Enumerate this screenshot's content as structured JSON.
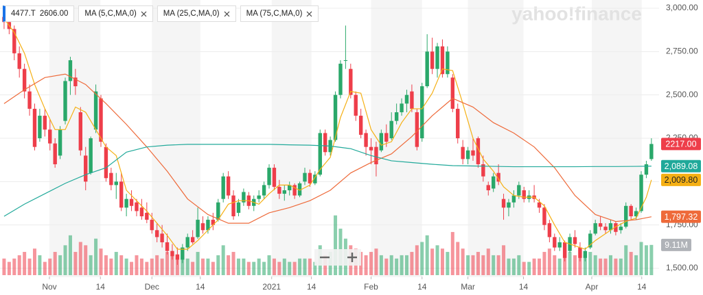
{
  "chart_data": {
    "type": "candlestick",
    "symbol": "4477.T",
    "quote": "2606.00",
    "watermark": "yahoo!finance",
    "up_color": "#2aa86a",
    "down_color": "#ee3e4a",
    "grid": true,
    "ylim": [
      1500,
      3000
    ],
    "yticks": [
      {
        "value": 1500,
        "label": "1,500.00"
      },
      {
        "value": 1750,
        "label": "1,750.00"
      },
      {
        "value": 2000,
        "label": "2,000.00"
      },
      {
        "value": 2250,
        "label": "2,250.00"
      },
      {
        "value": 2500,
        "label": "2,500.00"
      },
      {
        "value": 2750,
        "label": "2,750.00"
      },
      {
        "value": 3000,
        "label": "3,000.00"
      }
    ],
    "xlim": [
      -0.8,
      128.5
    ],
    "xticks": [
      {
        "value": 8.9,
        "label": "Nov"
      },
      {
        "value": 18.9,
        "label": "14"
      },
      {
        "value": 29,
        "label": "Dec"
      },
      {
        "value": 38.5,
        "label": "14"
      },
      {
        "value": 52.5,
        "label": "2021"
      },
      {
        "value": 60.3,
        "label": "14"
      },
      {
        "value": 72,
        "label": "Feb"
      },
      {
        "value": 82,
        "label": "14"
      },
      {
        "value": 91,
        "label": "Mar"
      },
      {
        "value": 101.9,
        "label": "14"
      },
      {
        "value": 115.3,
        "label": "Apr"
      },
      {
        "value": 125.1,
        "label": "14"
      }
    ],
    "close_label": "2217.00",
    "candles": [
      [
        2950,
        3000,
        2880,
        2920
      ],
      [
        2920,
        2960,
        2850,
        2880
      ],
      [
        2880,
        2900,
        2700,
        2740
      ],
      [
        2740,
        2780,
        2600,
        2650
      ],
      [
        2650,
        2680,
        2480,
        2520
      ],
      [
        2520,
        2560,
        2380,
        2420
      ],
      [
        2420,
        2450,
        2180,
        2200
      ],
      [
        2250,
        2420,
        2230,
        2380
      ],
      [
        2380,
        2420,
        2260,
        2300
      ],
      [
        2300,
        2360,
        2180,
        2220
      ],
      [
        2220,
        2250,
        2080,
        2100
      ],
      [
        2150,
        2320,
        2130,
        2300
      ],
      [
        2350,
        2600,
        2330,
        2580
      ],
      [
        2580,
        2720,
        2500,
        2700
      ],
      [
        2600,
        2650,
        2500,
        2550
      ],
      [
        2400,
        2430,
        2150,
        2180
      ],
      [
        2150,
        2200,
        1950,
        2000
      ],
      [
        2050,
        2260,
        2040,
        2250
      ],
      [
        2300,
        2560,
        2280,
        2520
      ],
      [
        2480,
        2500,
        2200,
        2230
      ],
      [
        2200,
        2220,
        2000,
        2020
      ],
      [
        2050,
        2080,
        1950,
        1980
      ],
      [
        1980,
        2050,
        1900,
        2000
      ],
      [
        2000,
        2050,
        1830,
        1850
      ],
      [
        1850,
        1930,
        1800,
        1900
      ],
      [
        1900,
        1950,
        1830,
        1860
      ],
      [
        1880,
        1900,
        1800,
        1830
      ],
      [
        1850,
        1900,
        1780,
        1800
      ],
      [
        1820,
        1880,
        1760,
        1780
      ],
      [
        1780,
        1820,
        1700,
        1720
      ],
      [
        1720,
        1760,
        1650,
        1680
      ],
      [
        1700,
        1750,
        1620,
        1650
      ],
      [
        1650,
        1700,
        1580,
        1600
      ],
      [
        1600,
        1640,
        1550,
        1570
      ],
      [
        1580,
        1620,
        1520,
        1550
      ],
      [
        1550,
        1640,
        1530,
        1620
      ],
      [
        1620,
        1700,
        1600,
        1680
      ],
      [
        1680,
        1720,
        1640,
        1650
      ],
      [
        1680,
        1850,
        1670,
        1780
      ],
      [
        1760,
        1800,
        1700,
        1720
      ],
      [
        1720,
        1800,
        1700,
        1780
      ],
      [
        1780,
        1820,
        1720,
        1750
      ],
      [
        1780,
        1900,
        1770,
        1880
      ],
      [
        1900,
        2050,
        1880,
        2030
      ],
      [
        2030,
        2060,
        1900,
        1920
      ],
      [
        1920,
        1950,
        1780,
        1800
      ],
      [
        1820,
        1900,
        1800,
        1880
      ],
      [
        1880,
        1960,
        1860,
        1940
      ],
      [
        1920,
        1940,
        1840,
        1860
      ],
      [
        1860,
        1920,
        1830,
        1900
      ],
      [
        1900,
        1950,
        1880,
        1920
      ],
      [
        1920,
        2000,
        1900,
        1980
      ],
      [
        1980,
        2100,
        1960,
        2080
      ],
      [
        2080,
        2100,
        1950,
        1970
      ],
      [
        1970,
        2010,
        1900,
        1930
      ],
      [
        1930,
        1980,
        1890,
        1950
      ],
      [
        1950,
        2000,
        1920,
        1980
      ],
      [
        1980,
        1990,
        1900,
        1920
      ],
      [
        1920,
        2000,
        1910,
        1990
      ],
      [
        2000,
        2080,
        1980,
        2050
      ],
      [
        2050,
        2070,
        1970,
        1990
      ],
      [
        1990,
        2060,
        1980,
        2040
      ],
      [
        2040,
        2300,
        2030,
        2280
      ],
      [
        2280,
        2300,
        2150,
        2170
      ],
      [
        2170,
        2260,
        2150,
        2240
      ],
      [
        2240,
        2520,
        2230,
        2500
      ],
      [
        2500,
        2700,
        2480,
        2680
      ],
      [
        2700,
        2900,
        2650,
        2700
      ],
      [
        2650,
        2680,
        2480,
        2500
      ],
      [
        2500,
        2520,
        2350,
        2380
      ],
      [
        2380,
        2420,
        2250,
        2270
      ],
      [
        2280,
        2300,
        2150,
        2200
      ],
      [
        2200,
        2250,
        2100,
        2180
      ],
      [
        2200,
        2230,
        2030,
        2100
      ],
      [
        2180,
        2300,
        2170,
        2280
      ],
      [
        2280,
        2330,
        2200,
        2230
      ],
      [
        2250,
        2400,
        2240,
        2350
      ],
      [
        2350,
        2450,
        2330,
        2400
      ],
      [
        2400,
        2480,
        2380,
        2450
      ],
      [
        2450,
        2530,
        2400,
        2500
      ],
      [
        2520,
        2560,
        2400,
        2420
      ],
      [
        2400,
        2420,
        2180,
        2200
      ],
      [
        2250,
        2570,
        2230,
        2550
      ],
      [
        2550,
        2850,
        2540,
        2750
      ],
      [
        2750,
        2830,
        2620,
        2650
      ],
      [
        2650,
        2800,
        2600,
        2780
      ],
      [
        2780,
        2820,
        2600,
        2620
      ],
      [
        2620,
        2780,
        2600,
        2750
      ],
      [
        2600,
        2620,
        2400,
        2420
      ],
      [
        2420,
        2450,
        2220,
        2250
      ],
      [
        2200,
        2240,
        2100,
        2130
      ],
      [
        2130,
        2200,
        2100,
        2180
      ],
      [
        2180,
        2250,
        2120,
        2150
      ],
      [
        2250,
        2260,
        2080,
        2100
      ],
      [
        2100,
        2150,
        2000,
        2030
      ],
      [
        1980,
        2000,
        1920,
        1950
      ],
      [
        1960,
        2050,
        1940,
        2030
      ],
      [
        2050,
        2100,
        1980,
        2000
      ],
      [
        1900,
        1930,
        1780,
        1850
      ],
      [
        1850,
        1900,
        1800,
        1880
      ],
      [
        1880,
        1950,
        1850,
        1920
      ],
      [
        1920,
        2000,
        1900,
        1980
      ],
      [
        1950,
        1970,
        1880,
        1900
      ],
      [
        1900,
        1950,
        1880,
        1920
      ],
      [
        1920,
        1980,
        1880,
        1900
      ],
      [
        1880,
        1900,
        1820,
        1850
      ],
      [
        1850,
        1870,
        1720,
        1750
      ],
      [
        1760,
        1780,
        1650,
        1680
      ],
      [
        1680,
        1700,
        1600,
        1620
      ],
      [
        1620,
        1680,
        1600,
        1650
      ],
      [
        1650,
        1660,
        1540,
        1560
      ],
      [
        1600,
        1700,
        1590,
        1680
      ],
      [
        1680,
        1720,
        1620,
        1640
      ],
      [
        1620,
        1650,
        1540,
        1560
      ],
      [
        1560,
        1620,
        1540,
        1600
      ],
      [
        1620,
        1720,
        1610,
        1700
      ],
      [
        1700,
        1780,
        1690,
        1760
      ],
      [
        1760,
        1800,
        1720,
        1740
      ],
      [
        1740,
        1760,
        1700,
        1720
      ],
      [
        1720,
        1780,
        1700,
        1760
      ],
      [
        1760,
        1770,
        1690,
        1710
      ],
      [
        1720,
        1760,
        1700,
        1740
      ],
      [
        1740,
        1880,
        1730,
        1860
      ],
      [
        1860,
        1870,
        1780,
        1800
      ],
      [
        1800,
        1850,
        1780,
        1830
      ],
      [
        1830,
        2060,
        1820,
        2040
      ],
      [
        2040,
        2120,
        2020,
        2100
      ],
      [
        2130,
        2250,
        2120,
        2217
      ]
    ],
    "volume_lim": [
      0,
      20
    ],
    "volumes": [
      5,
      4,
      5,
      6,
      7,
      5,
      8,
      6,
      4,
      5,
      7,
      6,
      9,
      12,
      7,
      10,
      9,
      6,
      11,
      8,
      6,
      5,
      7,
      6,
      5,
      4,
      6,
      5,
      4,
      5,
      6,
      5,
      7,
      6,
      5,
      6,
      5,
      4,
      7,
      5,
      5,
      4,
      6,
      9,
      6,
      7,
      5,
      5,
      4,
      4,
      5,
      4,
      6,
      5,
      4,
      5,
      4,
      4,
      5,
      5,
      5,
      4,
      9,
      6,
      7,
      18,
      14,
      11,
      9,
      8,
      7,
      6,
      7,
      8,
      6,
      5,
      6,
      5,
      6,
      6,
      7,
      9,
      10,
      12,
      8,
      9,
      8,
      7,
      13,
      10,
      8,
      6,
      6,
      7,
      6,
      8,
      6,
      6,
      9,
      5,
      5,
      6,
      4,
      4,
      5,
      5,
      7,
      8,
      6,
      5,
      8,
      7,
      6,
      8,
      6,
      7,
      6,
      5,
      5,
      6,
      5,
      5,
      9,
      7,
      6,
      10,
      9,
      9.11
    ],
    "volume_label": "9.11M",
    "series": [
      {
        "name": "MA (5,C,MA,0)",
        "color": "#f5b014",
        "label_text_color": "#222222",
        "last_label": "2,009.80",
        "x": [
          0,
          2,
          4,
          6,
          8,
          10,
          12,
          14,
          16,
          18,
          20,
          22,
          24,
          26,
          28,
          30,
          32,
          34,
          36,
          38,
          40,
          42,
          44,
          46,
          48,
          50,
          52,
          54,
          56,
          58,
          60,
          62,
          64,
          66,
          68,
          70,
          72,
          74,
          76,
          78,
          80,
          82,
          84,
          86,
          88,
          90,
          92,
          94,
          96,
          98,
          100,
          102,
          104,
          106,
          108,
          110,
          112,
          114,
          116,
          118,
          120,
          122,
          124,
          126,
          127
        ],
        "values": [
          2940,
          2860,
          2740,
          2560,
          2420,
          2300,
          2300,
          2430,
          2400,
          2300,
          2200,
          2150,
          1950,
          1890,
          1830,
          1760,
          1690,
          1610,
          1610,
          1660,
          1720,
          1780,
          1870,
          1890,
          1890,
          1870,
          1930,
          1980,
          1980,
          1950,
          1980,
          2070,
          2140,
          2370,
          2520,
          2510,
          2300,
          2210,
          2230,
          2340,
          2420,
          2420,
          2510,
          2650,
          2640,
          2450,
          2250,
          2130,
          2060,
          1970,
          1920,
          1910,
          1910,
          1860,
          1750,
          1650,
          1630,
          1610,
          1660,
          1700,
          1740,
          1770,
          1790,
          1910,
          2009.8
        ]
      },
      {
        "name": "MA (25,C,MA,0)",
        "color": "#ee6a3a",
        "label_text_color": "#ffffff",
        "last_label": "1,797.32",
        "x": [
          0,
          4,
          8,
          12,
          16,
          20,
          24,
          28,
          32,
          36,
          40,
          44,
          48,
          52,
          56,
          60,
          64,
          68,
          72,
          76,
          80,
          84,
          88,
          92,
          96,
          100,
          104,
          108,
          112,
          116,
          120,
          124,
          127
        ],
        "values": [
          2450,
          2530,
          2600,
          2620,
          2560,
          2450,
          2330,
          2200,
          2060,
          1900,
          1810,
          1760,
          1760,
          1820,
          1850,
          1890,
          1950,
          2050,
          2110,
          2160,
          2260,
          2380,
          2480,
          2430,
          2340,
          2280,
          2200,
          2080,
          1920,
          1810,
          1770,
          1780,
          1797.32
        ]
      },
      {
        "name": "MA (75,C,MA,0)",
        "color": "#20a99a",
        "label_text_color": "#ffffff",
        "last_label": "2,089.08",
        "x": [
          0,
          4,
          8,
          12,
          16,
          20,
          24,
          28,
          32,
          36,
          40,
          44,
          48,
          52,
          56,
          60,
          64,
          68,
          72,
          76,
          80,
          84,
          88,
          92,
          96,
          100,
          104,
          108,
          112,
          116,
          120,
          124,
          127
        ],
        "values": [
          1800,
          1870,
          1930,
          1990,
          2040,
          2080,
          2170,
          2200,
          2210,
          2215,
          2215,
          2215,
          2215,
          2215,
          2212,
          2210,
          2205,
          2190,
          2150,
          2120,
          2110,
          2100,
          2092,
          2090,
          2088,
          2086,
          2086,
          2086,
          2086,
          2087,
          2087,
          2088,
          2089.08
        ]
      }
    ]
  }
}
